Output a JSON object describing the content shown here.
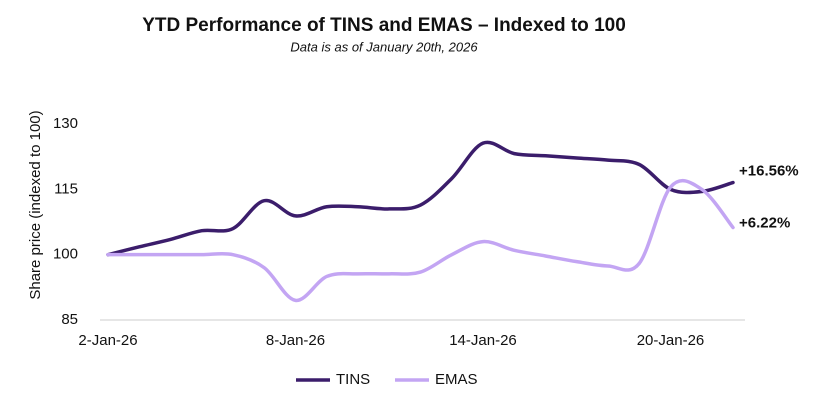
{
  "chart_data": {
    "type": "line",
    "title": "YTD Performance of TINS and EMAS – Indexed to 100",
    "subtitle": "Data is as of January 20th, 2026",
    "y_label": "Share price (indexed to 100)",
    "categories": [
      "2-Jan-26",
      null,
      null,
      null,
      null,
      null,
      "8-Jan-26",
      null,
      null,
      null,
      null,
      null,
      "14-Jan-26",
      null,
      null,
      null,
      null,
      null,
      "20-Jan-26",
      null,
      null
    ],
    "series": [
      {
        "name": "TINS",
        "color": "#3b1d6b",
        "values": [
          100,
          101.8,
          103.5,
          105.5,
          106,
          112.4,
          108.9,
          111,
          111,
          110.5,
          111.4,
          117.5,
          125.6,
          123.2,
          122.7,
          122.2,
          121.7,
          120.7,
          115,
          114.5,
          116.56
        ],
        "end_label": "+16.56%"
      },
      {
        "name": "EMAS",
        "color": "#c3a5f3",
        "values": [
          100,
          100,
          100,
          100,
          100,
          97,
          89.5,
          95,
          95.6,
          95.6,
          96,
          100,
          103,
          101,
          99.7,
          98.4,
          97.4,
          98,
          115.5,
          115,
          106.22
        ],
        "end_label": "+6.22%"
      }
    ],
    "ylim": [
      85,
      130
    ],
    "yticks": [
      85,
      100,
      115,
      130
    ],
    "grid": false,
    "legend": "bottom"
  }
}
